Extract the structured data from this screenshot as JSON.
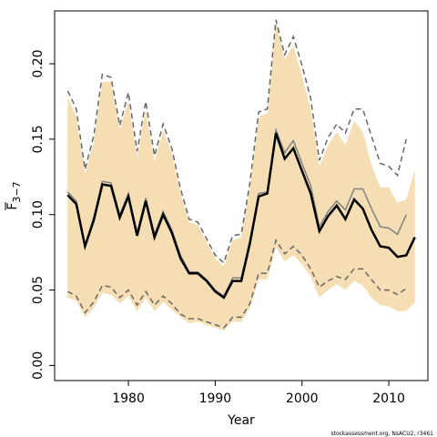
{
  "chart_data": {
    "type": "line",
    "xlabel": "Year",
    "ylabel_main": "F",
    "ylabel_sub": "3−7",
    "credit": "stockassessment.org, NsACU2, r3461",
    "xlim": [
      1971.5,
      2014.5
    ],
    "ylim": [
      -0.01,
      0.235
    ],
    "x_ticks": [
      1980,
      1990,
      2000,
      2010
    ],
    "x_tick_labels": [
      "1980",
      "1990",
      "2000",
      "2010"
    ],
    "y_ticks": [
      0.0,
      0.05,
      0.1,
      0.15,
      0.2
    ],
    "y_tick_labels": [
      "0.00",
      "0.05",
      "0.10",
      "0.15",
      "0.20"
    ],
    "colors": {
      "band": "#f5deb3",
      "current": "#000000",
      "previous": "#808080",
      "previous_ci": "#666666"
    },
    "band": {
      "x": [
        1973,
        1974,
        1975,
        1976,
        1977,
        1978,
        1979,
        1980,
        1981,
        1982,
        1983,
        1984,
        1985,
        1986,
        1987,
        1988,
        1989,
        1990,
        1991,
        1992,
        1993,
        1994,
        1995,
        1996,
        1997,
        1998,
        1999,
        2000,
        2001,
        2002,
        2003,
        2004,
        2005,
        2006,
        2007,
        2008,
        2009,
        2010,
        2011,
        2012,
        2013
      ],
      "upper": [
        0.178,
        0.165,
        0.127,
        0.148,
        0.188,
        0.188,
        0.156,
        0.176,
        0.138,
        0.17,
        0.135,
        0.156,
        0.141,
        0.114,
        0.095,
        0.093,
        0.082,
        0.071,
        0.066,
        0.083,
        0.085,
        0.118,
        0.165,
        0.167,
        0.228,
        0.203,
        0.212,
        0.192,
        0.17,
        0.132,
        0.146,
        0.155,
        0.146,
        0.162,
        0.155,
        0.133,
        0.118,
        0.118,
        0.108,
        0.11,
        0.13
      ],
      "lower": [
        0.045,
        0.043,
        0.032,
        0.038,
        0.048,
        0.047,
        0.041,
        0.046,
        0.036,
        0.045,
        0.036,
        0.042,
        0.037,
        0.032,
        0.028,
        0.029,
        0.027,
        0.025,
        0.023,
        0.029,
        0.029,
        0.038,
        0.057,
        0.057,
        0.078,
        0.069,
        0.073,
        0.067,
        0.059,
        0.045,
        0.05,
        0.054,
        0.05,
        0.056,
        0.053,
        0.045,
        0.04,
        0.039,
        0.036,
        0.036,
        0.042
      ]
    },
    "series": [
      {
        "x": [
          1973,
          1974,
          1975,
          1976,
          1977,
          1978,
          1979,
          1980,
          1981,
          1982,
          1983,
          1984,
          1985,
          1986,
          1987,
          1988,
          1989,
          1990,
          1991,
          1992,
          1993,
          1994,
          1995,
          1996,
          1997,
          1998,
          1999,
          2000,
          2001,
          2002,
          2003,
          2004,
          2005,
          2006,
          2007,
          2008,
          2009,
          2010,
          2011,
          2012,
          2013
        ],
        "values": [
          0.113,
          0.107,
          0.079,
          0.096,
          0.12,
          0.119,
          0.098,
          0.112,
          0.086,
          0.109,
          0.085,
          0.1,
          0.088,
          0.071,
          0.061,
          0.061,
          0.056,
          0.049,
          0.045,
          0.056,
          0.056,
          0.081,
          0.112,
          0.114,
          0.154,
          0.137,
          0.144,
          0.129,
          0.114,
          0.089,
          0.099,
          0.106,
          0.097,
          0.11,
          0.104,
          0.09,
          0.079,
          0.078,
          0.072,
          0.073,
          0.085
        ]
      },
      {
        "x": [
          1973,
          1974,
          1975,
          1976,
          1977,
          1978,
          1979,
          1980,
          1981,
          1982,
          1983,
          1984,
          1985,
          1986,
          1987,
          1988,
          1989,
          1990,
          1991,
          1992,
          1993,
          1994,
          1995,
          1996,
          1997,
          1998,
          1999,
          2000,
          2001,
          2002,
          2003,
          2004,
          2005,
          2006,
          2007,
          2008,
          2009,
          2010,
          2011,
          2012
        ],
        "values": [
          0.115,
          0.109,
          0.08,
          0.098,
          0.122,
          0.121,
          0.1,
          0.114,
          0.088,
          0.111,
          0.087,
          0.102,
          0.09,
          0.073,
          0.062,
          0.062,
          0.057,
          0.05,
          0.046,
          0.058,
          0.058,
          0.083,
          0.114,
          0.115,
          0.156,
          0.141,
          0.149,
          0.134,
          0.119,
          0.092,
          0.102,
          0.109,
          0.103,
          0.117,
          0.117,
          0.104,
          0.092,
          0.091,
          0.087,
          0.1
        ]
      }
    ],
    "previous_ci": {
      "x": [
        1973,
        1974,
        1975,
        1976,
        1977,
        1978,
        1979,
        1980,
        1981,
        1982,
        1983,
        1984,
        1985,
        1986,
        1987,
        1988,
        1989,
        1990,
        1991,
        1992,
        1993,
        1994,
        1995,
        1996,
        1997,
        1998,
        1999,
        2000,
        2001,
        2002,
        2003,
        2004,
        2005,
        2006,
        2007,
        2008,
        2009,
        2010,
        2011,
        2012
      ],
      "upper": [
        0.182,
        0.17,
        0.13,
        0.152,
        0.193,
        0.191,
        0.159,
        0.181,
        0.142,
        0.175,
        0.139,
        0.16,
        0.144,
        0.117,
        0.097,
        0.095,
        0.084,
        0.073,
        0.068,
        0.086,
        0.087,
        0.121,
        0.168,
        0.17,
        0.229,
        0.206,
        0.218,
        0.199,
        0.177,
        0.136,
        0.151,
        0.16,
        0.154,
        0.17,
        0.17,
        0.152,
        0.134,
        0.132,
        0.126,
        0.15
      ],
      "lower": [
        0.049,
        0.046,
        0.035,
        0.042,
        0.053,
        0.052,
        0.045,
        0.05,
        0.04,
        0.049,
        0.04,
        0.046,
        0.041,
        0.034,
        0.031,
        0.031,
        0.029,
        0.027,
        0.025,
        0.032,
        0.032,
        0.041,
        0.061,
        0.061,
        0.083,
        0.074,
        0.079,
        0.073,
        0.064,
        0.052,
        0.056,
        0.059,
        0.057,
        0.064,
        0.064,
        0.057,
        0.05,
        0.05,
        0.047,
        0.051
      ]
    }
  }
}
